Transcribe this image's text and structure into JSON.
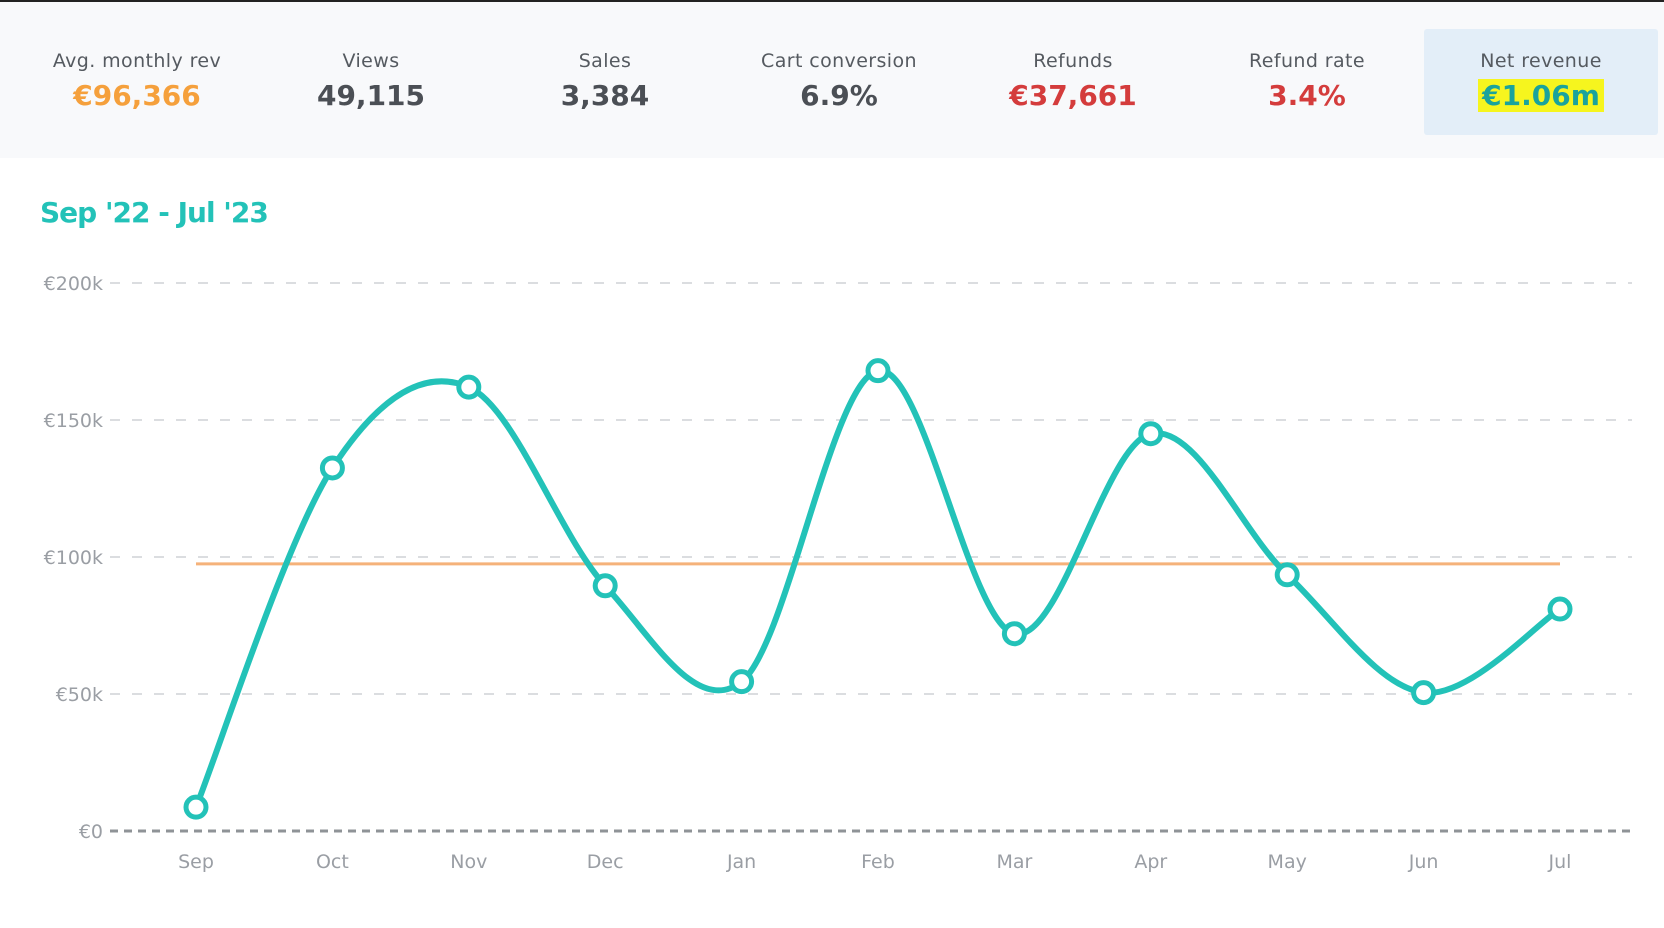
{
  "stats": [
    {
      "label": "Avg. monthly rev",
      "value": "€96,366",
      "color": "#f5a03c"
    },
    {
      "label": "Views",
      "value": "49,115",
      "color": "#4b4f55"
    },
    {
      "label": "Sales",
      "value": "3,384",
      "color": "#4b4f55"
    },
    {
      "label": "Cart conversion",
      "value": "6.9%",
      "color": "#4b4f55"
    },
    {
      "label": "Refunds",
      "value": "€37,661",
      "color": "#d43c3c"
    },
    {
      "label": "Refund rate",
      "value": "3.4%",
      "color": "#d43c3c"
    },
    {
      "label": "Net revenue",
      "value": "€1.06m",
      "color": "#1aa39c",
      "highlight": "#f6f51e"
    }
  ],
  "colors": {
    "accent": "#23c2b8",
    "average_line": "#f5b27a",
    "highlight_box": "#e3eef8"
  },
  "chart_data": {
    "type": "line",
    "title": "Sep '22 - Jul '23",
    "categories": [
      "Sep",
      "Oct",
      "Nov",
      "Dec",
      "Jan",
      "Feb",
      "Mar",
      "Apr",
      "May",
      "Jun",
      "Jul"
    ],
    "series": [
      {
        "values": [
          8700,
          132500,
          162000,
          89500,
          54500,
          168000,
          72000,
          145000,
          93500,
          50500,
          81000
        ]
      }
    ],
    "reference_line": {
      "value": 97500
    },
    "ylim": [
      0,
      200000
    ],
    "yticks": [
      0,
      50000,
      100000,
      150000,
      200000
    ],
    "ytick_labels": [
      "€0",
      "€50k",
      "€100k",
      "€150k",
      "€200k"
    ],
    "grid": "horizontal-dashed",
    "legend": "none"
  }
}
